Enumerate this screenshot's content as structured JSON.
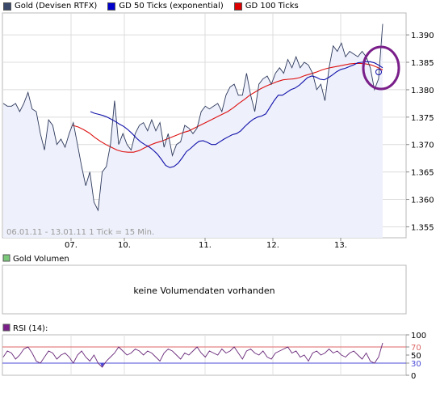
{
  "legend": [
    {
      "label": "Gold (Devisen RTFX)",
      "color": "#3b4a6b"
    },
    {
      "label": "GD 50 Ticks (exponential)",
      "color": "#0000cc"
    },
    {
      "label": "GD 100 Ticks",
      "color": "#dd0000"
    }
  ],
  "colors": {
    "price": "#2e3a5c",
    "gd50": "#1111aa",
    "gd100": "#dd1111",
    "fill": "#eef0fb",
    "highlight": "#7a1f8a",
    "rsi": "#6a2a7a",
    "rsi70": "#dd6666",
    "rsi30": "#4a4ad8"
  },
  "chart_data": [
    {
      "type": "line",
      "name": "price",
      "range_label": "06.01.11 - 13.01.11   1 Tick = 15 Min.",
      "x_ticks": [
        "07.",
        "10.",
        "11.",
        "12.",
        "13."
      ],
      "y_ticks": [
        "1.390",
        "1.385",
        "1.380",
        "1.375",
        "1.370",
        "1.365",
        "1.360",
        "1.355"
      ],
      "ylim": [
        1.353,
        1.394
      ],
      "grid": true,
      "series": [
        {
          "name": "Gold (Devisen RTFX)",
          "values": [
            1.3775,
            1.377,
            1.377,
            1.3775,
            1.376,
            1.3775,
            1.3795,
            1.3765,
            1.376,
            1.372,
            1.369,
            1.3745,
            1.3735,
            1.37,
            1.371,
            1.3695,
            1.372,
            1.374,
            1.37,
            1.366,
            1.3625,
            1.365,
            1.3595,
            1.358,
            1.365,
            1.366,
            1.37,
            1.378,
            1.37,
            1.372,
            1.37,
            1.369,
            1.372,
            1.3735,
            1.374,
            1.3725,
            1.3745,
            1.3725,
            1.374,
            1.3695,
            1.372,
            1.368,
            1.37,
            1.3705,
            1.3735,
            1.373,
            1.372,
            1.373,
            1.376,
            1.377,
            1.3765,
            1.377,
            1.3775,
            1.376,
            1.379,
            1.3805,
            1.381,
            1.379,
            1.379,
            1.383,
            1.379,
            1.376,
            1.381,
            1.382,
            1.3825,
            1.381,
            1.383,
            1.384,
            1.383,
            1.3855,
            1.384,
            1.386,
            1.384,
            1.385,
            1.3845,
            1.383,
            1.38,
            1.381,
            1.378,
            1.384,
            1.388,
            1.387,
            1.3885,
            1.386,
            1.387,
            1.3865,
            1.386,
            1.387,
            1.386,
            1.384,
            1.38,
            1.382,
            1.392
          ]
        },
        {
          "name": "GD 50 Ticks (exponential)",
          "values": [
            1.376,
            1.3757,
            1.3755,
            1.3753,
            1.375,
            1.3746,
            1.3742,
            1.3737,
            1.3733,
            1.3727,
            1.372,
            1.3712,
            1.3705,
            1.37,
            1.3696,
            1.369,
            1.3683,
            1.3673,
            1.3662,
            1.3658,
            1.366,
            1.3666,
            1.3676,
            1.3687,
            1.3693,
            1.37,
            1.3706,
            1.3707,
            1.3704,
            1.37,
            1.37,
            1.3705,
            1.371,
            1.3714,
            1.3718,
            1.372,
            1.3725,
            1.3733,
            1.374,
            1.3746,
            1.375,
            1.3752,
            1.3756,
            1.3768,
            1.378,
            1.379,
            1.379,
            1.3795,
            1.38,
            1.3803,
            1.3808,
            1.3815,
            1.3822,
            1.3825,
            1.3823,
            1.3819,
            1.3818,
            1.3822,
            1.3827,
            1.3833,
            1.3837,
            1.3839,
            1.3842,
            1.3845,
            1.3849,
            1.385,
            1.3851,
            1.3851,
            1.3849,
            1.3845,
            1.384
          ]
        },
        {
          "name": "GD 100 Ticks",
          "values": [
            1.3735,
            1.3732,
            1.3727,
            1.3721,
            1.3713,
            1.3706,
            1.37,
            1.3695,
            1.369,
            1.3687,
            1.3686,
            1.3686,
            1.3689,
            1.3694,
            1.3699,
            1.3703,
            1.3706,
            1.371,
            1.3714,
            1.3718,
            1.3722,
            1.3725,
            1.373,
            1.3735,
            1.374,
            1.3745,
            1.375,
            1.3755,
            1.376,
            1.3767,
            1.3775,
            1.3782,
            1.379,
            1.3796,
            1.3802,
            1.3807,
            1.3811,
            1.3815,
            1.3818,
            1.3819,
            1.382,
            1.3822,
            1.3826,
            1.3829,
            1.3832,
            1.3836,
            1.3839,
            1.3841,
            1.3843,
            1.3845,
            1.3847,
            1.3848,
            1.3848,
            1.3847,
            1.3845,
            1.3841,
            1.3836
          ]
        }
      ]
    },
    {
      "type": "bar",
      "name": "volume",
      "legend_label": "Gold Volumen",
      "message": "keine Volumendaten vorhanden",
      "values": []
    },
    {
      "type": "line",
      "name": "rsi",
      "legend_label": "RSI (14):",
      "ylim": [
        0,
        100
      ],
      "y_ticks": [
        "100",
        "70",
        "50",
        "30",
        "0"
      ],
      "levels": [
        70,
        30
      ],
      "series": [
        {
          "name": "RSI (14)",
          "values": [
            45,
            60,
            55,
            40,
            50,
            65,
            70,
            55,
            35,
            30,
            45,
            60,
            55,
            40,
            50,
            55,
            45,
            30,
            50,
            60,
            45,
            35,
            50,
            30,
            20,
            35,
            45,
            55,
            70,
            60,
            50,
            55,
            65,
            60,
            50,
            60,
            55,
            45,
            35,
            55,
            65,
            60,
            50,
            40,
            55,
            50,
            60,
            70,
            55,
            45,
            60,
            55,
            50,
            65,
            55,
            60,
            70,
            55,
            40,
            60,
            65,
            55,
            50,
            60,
            45,
            40,
            55,
            60,
            65,
            70,
            55,
            60,
            45,
            50,
            35,
            55,
            60,
            50,
            55,
            65,
            55,
            60,
            50,
            45,
            55,
            60,
            50,
            40,
            55,
            35,
            30,
            45,
            80
          ]
        }
      ]
    }
  ]
}
